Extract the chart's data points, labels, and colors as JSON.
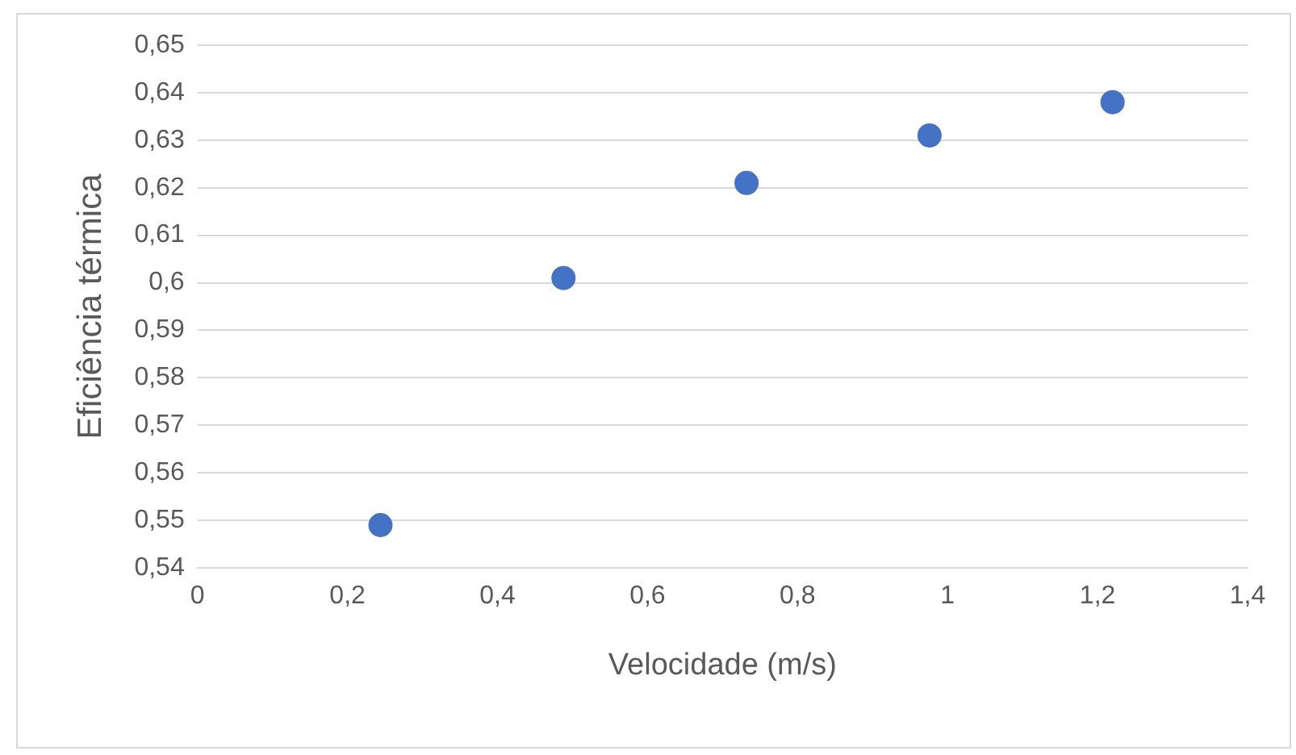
{
  "chart_data": {
    "type": "scatter",
    "xlabel": "Velocidade (m/s)",
    "ylabel": "Eficiência térmica",
    "x": [
      0.244,
      0.488,
      0.732,
      0.976,
      1.22
    ],
    "values": [
      0.549,
      0.601,
      0.621,
      0.631,
      0.638
    ],
    "color": "#4472c4",
    "marker": "circle",
    "grid": "y",
    "legend": false,
    "xlim": [
      0,
      1.4
    ],
    "xticks": [
      0,
      {
        "value": 0.2,
        "label": "0,2"
      },
      {
        "value": 0.4,
        "label": "0,4"
      },
      {
        "value": 0.6,
        "label": "0,6"
      },
      {
        "value": 0.8,
        "label": "0,8"
      },
      1,
      {
        "value": 1.2,
        "label": "1,2"
      },
      {
        "value": 1.4,
        "label": "1,4"
      }
    ],
    "ylim": [
      0.54,
      0.65
    ],
    "yticks": [
      {
        "value": 0.54,
        "label": "0,54"
      },
      {
        "value": 0.55,
        "label": "0,55"
      },
      {
        "value": 0.56,
        "label": "0,56"
      },
      {
        "value": 0.57,
        "label": "0,57"
      },
      {
        "value": 0.58,
        "label": "0,58"
      },
      {
        "value": 0.59,
        "label": "0,59"
      },
      {
        "value": 0.6,
        "label": "0,6"
      },
      {
        "value": 0.61,
        "label": "0,61"
      },
      {
        "value": 0.62,
        "label": "0,62"
      },
      {
        "value": 0.63,
        "label": "0,63"
      },
      {
        "value": 0.64,
        "label": "0,64"
      },
      {
        "value": 0.65,
        "label": "0,65"
      }
    ]
  }
}
